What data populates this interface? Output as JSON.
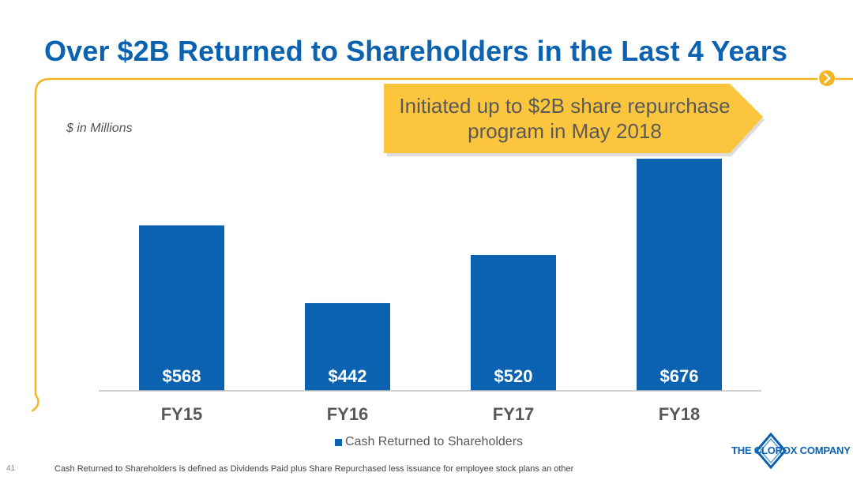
{
  "slide": {
    "title": "Over $2B Returned to Shareholders in the Last 4 Years",
    "units_label": "$ in Millions",
    "page_number": "41",
    "footnote": "Cash Returned to Shareholders is defined as Dividends Paid plus Share Repurchased less issuance for employee stock plans an other",
    "logo_text": "THE CLOROX COMPANY"
  },
  "callout": {
    "text_line1": "Initiated up to $2B share repurchase",
    "text_line2": "program in May 2018"
  },
  "colors": {
    "title": "#0b62b0",
    "bar": "#0b62b0",
    "accent": "#f5b523",
    "callout_fill": "#fcc53e"
  },
  "chart_data": {
    "type": "bar",
    "categories": [
      "FY15",
      "FY16",
      "FY17",
      "FY18"
    ],
    "series": [
      {
        "name": "Cash Returned to Shareholders",
        "values": [
          568,
          442,
          520,
          676
        ]
      }
    ],
    "data_labels": [
      "$568",
      "$442",
      "$520",
      "$676"
    ],
    "ylim": [
      300,
      676
    ],
    "grid": false,
    "legend": "bottom"
  }
}
